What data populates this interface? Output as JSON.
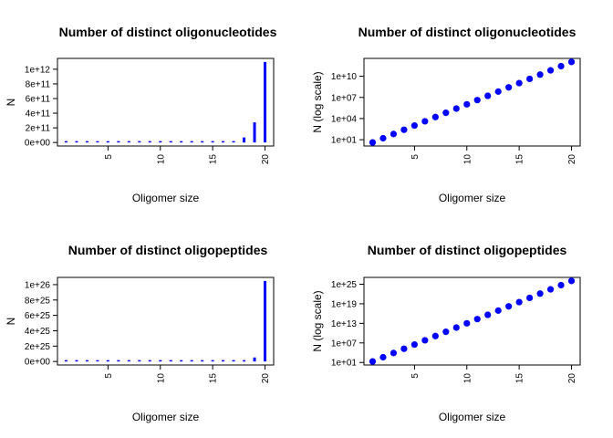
{
  "chart_data": [
    {
      "type": "bar",
      "title": "Number of distinct oligonucleotides",
      "xlabel": "Oligomer size",
      "ylabel": "N",
      "x": [
        1,
        2,
        3,
        4,
        5,
        6,
        7,
        8,
        9,
        10,
        11,
        12,
        13,
        14,
        15,
        16,
        17,
        18,
        19,
        20
      ],
      "values": [
        4,
        16,
        64,
        256,
        1024,
        4096,
        16384,
        65536,
        262144,
        1048576,
        4194304,
        16777216,
        67108864,
        268435456,
        1073741824,
        4294967296,
        17179869184,
        68719476736,
        274877906944,
        1099511627776
      ],
      "xlim": [
        1,
        20
      ],
      "ylim": [
        0,
        1100000000000.0
      ],
      "xticks": [
        5,
        10,
        15,
        20
      ],
      "xtick_labels": [
        "5",
        "10",
        "15",
        "20"
      ],
      "yticks": [
        0,
        200000000000.0,
        400000000000.0,
        600000000000.0,
        800000000000.0,
        1000000000000.0
      ],
      "ytick_labels": [
        "0e+00",
        "2e+11",
        "4e+11",
        "6e+11",
        "8e+11",
        "1e+12"
      ],
      "color": "#0000ff"
    },
    {
      "type": "scatter",
      "title": "Number of distinct oligonucleotides",
      "xlabel": "Oligomer size",
      "ylabel": "N (log scale)",
      "log_y": true,
      "x": [
        1,
        2,
        3,
        4,
        5,
        6,
        7,
        8,
        9,
        10,
        11,
        12,
        13,
        14,
        15,
        16,
        17,
        18,
        19,
        20
      ],
      "values": [
        4,
        16,
        64,
        256,
        1024,
        4096,
        16384,
        65536,
        262144,
        1048576,
        4194304,
        16777216,
        67108864,
        268435456,
        1073741824,
        4294967296,
        17179869184,
        68719476736,
        274877906944,
        1099511627776
      ],
      "xlim": [
        1,
        20
      ],
      "ylim": [
        4,
        1100000000000.0
      ],
      "xticks": [
        5,
        10,
        15,
        20
      ],
      "xtick_labels": [
        "5",
        "10",
        "15",
        "20"
      ],
      "yticks": [
        10,
        10000,
        10000000,
        10000000000
      ],
      "ytick_labels": [
        "1e+01",
        "1e+04",
        "1e+07",
        "1e+10"
      ],
      "color": "#0000ff"
    },
    {
      "type": "bar",
      "title": "Number of distinct oligopeptides",
      "xlabel": "Oligomer size",
      "ylabel": "N",
      "x": [
        1,
        2,
        3,
        4,
        5,
        6,
        7,
        8,
        9,
        10,
        11,
        12,
        13,
        14,
        15,
        16,
        17,
        18,
        19,
        20
      ],
      "values": [
        20,
        400,
        8000,
        160000,
        3200000,
        64000000,
        1280000000.0,
        25600000000.0,
        512000000000.0,
        10240000000000.0,
        204800000000000.0,
        4096000000000000.0,
        8.192e+16,
        1.6384e+18,
        3.2768e+19,
        6.5536e+20,
        1.31072e+22,
        2.62144e+23,
        5.24288e+24,
        1.048576e+26
      ],
      "xlim": [
        1,
        20
      ],
      "ylim": [
        0,
        1.048576e+26
      ],
      "xticks": [
        5,
        10,
        15,
        20
      ],
      "xtick_labels": [
        "5",
        "10",
        "15",
        "20"
      ],
      "yticks": [
        0,
        2e+25,
        4e+25,
        6e+25,
        8e+25,
        1e+26
      ],
      "ytick_labels": [
        "0e+00",
        "2e+25",
        "4e+25",
        "6e+25",
        "8e+25",
        "1e+26"
      ],
      "color": "#0000ff"
    },
    {
      "type": "scatter",
      "title": "Number of distinct oligopeptides",
      "xlabel": "Oligomer size",
      "ylabel": "N (log scale)",
      "log_y": true,
      "x": [
        1,
        2,
        3,
        4,
        5,
        6,
        7,
        8,
        9,
        10,
        11,
        12,
        13,
        14,
        15,
        16,
        17,
        18,
        19,
        20
      ],
      "values": [
        20,
        400,
        8000,
        160000,
        3200000,
        64000000,
        1280000000.0,
        25600000000.0,
        512000000000.0,
        10240000000000.0,
        204800000000000.0,
        4096000000000000.0,
        8.192e+16,
        1.6384e+18,
        3.2768e+19,
        6.5536e+20,
        1.31072e+22,
        2.62144e+23,
        5.24288e+24,
        1.048576e+26
      ],
      "xlim": [
        1,
        20
      ],
      "ylim": [
        20,
        1.048576e+26
      ],
      "xticks": [
        5,
        10,
        15,
        20
      ],
      "xtick_labels": [
        "5",
        "10",
        "15",
        "20"
      ],
      "yticks": [
        10,
        10000000,
        10000000000000.0,
        1e+19,
        1e+25
      ],
      "ytick_labels": [
        "1e+01",
        "1e+07",
        "1e+13",
        "1e+19",
        "1e+25"
      ],
      "color": "#0000ff"
    }
  ]
}
